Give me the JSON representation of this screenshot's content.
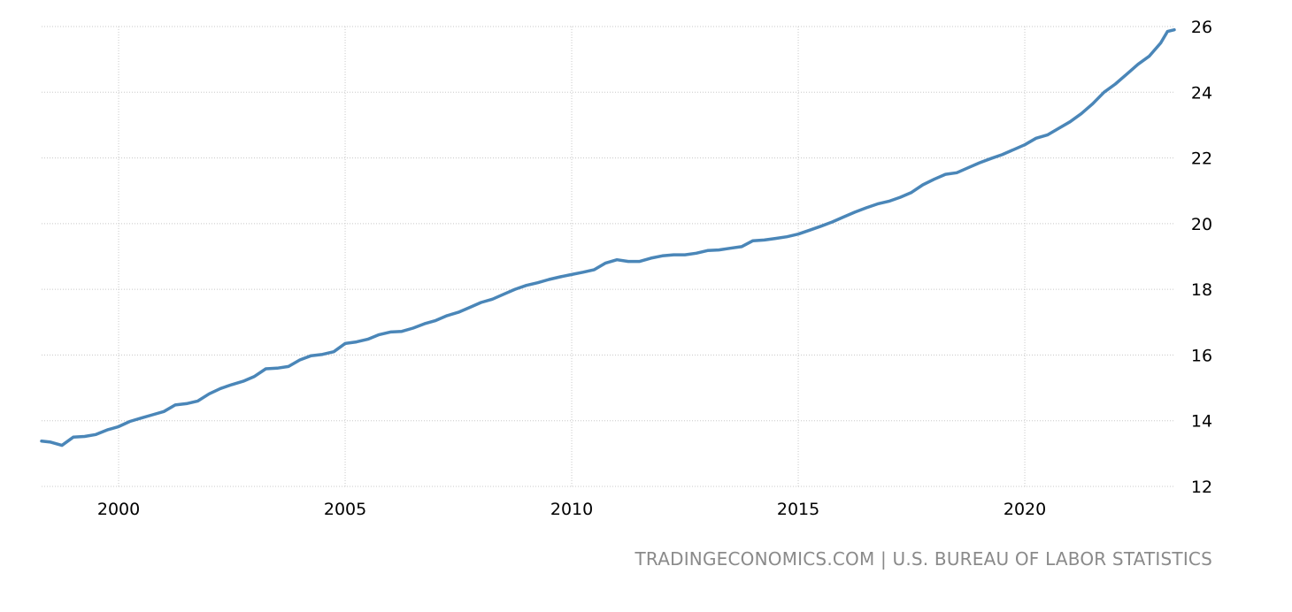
{
  "chart_data": {
    "type": "line",
    "title": "",
    "xlabel": "",
    "ylabel": "",
    "xlim": [
      1998.3,
      2023.3
    ],
    "ylim": [
      12,
      26
    ],
    "x_ticks": [
      2000,
      2005,
      2010,
      2015,
      2020
    ],
    "y_ticks": [
      12,
      14,
      16,
      18,
      20,
      22,
      24,
      26
    ],
    "y_axis_position": "right",
    "grid": "dotted, horizontal and vertical",
    "legend": "none",
    "line_color": "#4a86b8",
    "series": [
      {
        "x": [
          1998.3,
          1998.5,
          1998.75,
          1999.0,
          1999.25,
          1999.5,
          1999.75,
          2000.0,
          2000.25,
          2000.5,
          2000.75,
          2001.0,
          2001.25,
          2001.5,
          2001.75,
          2002.0,
          2002.25,
          2002.5,
          2002.75,
          2003.0,
          2003.25,
          2003.5,
          2003.75,
          2004.0,
          2004.25,
          2004.5,
          2004.75,
          2005.0,
          2005.25,
          2005.5,
          2005.75,
          2006.0,
          2006.25,
          2006.5,
          2006.75,
          2007.0,
          2007.25,
          2007.5,
          2007.75,
          2008.0,
          2008.25,
          2008.5,
          2008.75,
          2009.0,
          2009.25,
          2009.5,
          2009.75,
          2010.0,
          2010.25,
          2010.5,
          2010.75,
          2011.0,
          2011.25,
          2011.5,
          2011.75,
          2012.0,
          2012.25,
          2012.5,
          2012.75,
          2013.0,
          2013.25,
          2013.5,
          2013.75,
          2014.0,
          2014.25,
          2014.5,
          2014.75,
          2015.0,
          2015.25,
          2015.5,
          2015.75,
          2016.0,
          2016.25,
          2016.5,
          2016.75,
          2017.0,
          2017.25,
          2017.5,
          2017.75,
          2018.0,
          2018.25,
          2018.5,
          2018.75,
          2019.0,
          2019.25,
          2019.5,
          2019.75,
          2020.0,
          2020.25,
          2020.5,
          2020.75,
          2021.0,
          2021.25,
          2021.5,
          2021.75,
          2022.0,
          2022.25,
          2022.5,
          2022.75,
          2023.0,
          2023.15,
          2023.3
        ],
        "y": [
          13.38,
          13.35,
          13.25,
          13.5,
          13.52,
          13.58,
          13.72,
          13.82,
          13.98,
          14.08,
          14.18,
          14.28,
          14.48,
          14.52,
          14.6,
          14.82,
          14.98,
          15.1,
          15.2,
          15.35,
          15.58,
          15.6,
          15.65,
          15.85,
          15.98,
          16.02,
          16.1,
          16.35,
          16.4,
          16.48,
          16.62,
          16.7,
          16.72,
          16.82,
          16.95,
          17.05,
          17.2,
          17.3,
          17.45,
          17.6,
          17.7,
          17.85,
          18.0,
          18.12,
          18.2,
          18.3,
          18.38,
          18.45,
          18.52,
          18.6,
          18.8,
          18.9,
          18.85,
          18.85,
          18.95,
          19.02,
          19.05,
          19.05,
          19.1,
          19.18,
          19.2,
          19.25,
          19.3,
          19.48,
          19.5,
          19.55,
          19.6,
          19.68,
          19.8,
          19.92,
          20.05,
          20.2,
          20.35,
          20.48,
          20.6,
          20.68,
          20.8,
          20.95,
          21.18,
          21.35,
          21.5,
          21.55,
          21.7,
          21.85,
          21.98,
          22.1,
          22.25,
          22.4,
          22.6,
          22.7,
          22.9,
          23.1,
          23.35,
          23.65,
          24.0,
          24.25,
          24.55,
          24.85,
          25.1,
          25.5,
          25.85,
          25.9
        ]
      }
    ]
  },
  "source": {
    "text": "TRADINGECONOMICS.COM | U.S. BUREAU OF LABOR STATISTICS"
  }
}
